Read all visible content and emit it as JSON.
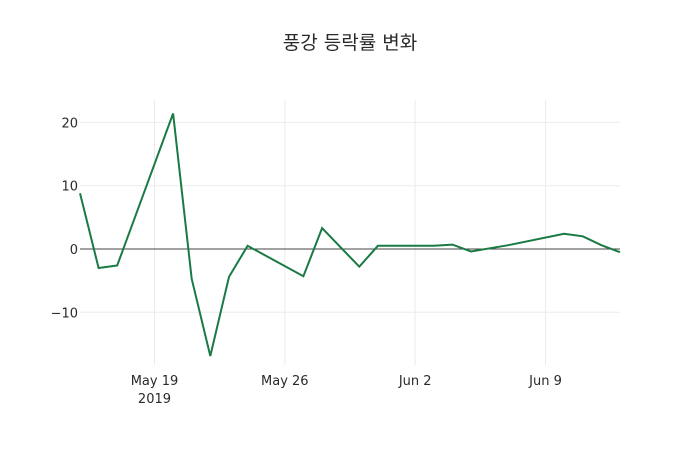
{
  "title": "풍강 등락률 변화",
  "chart_data": {
    "type": "line",
    "title": "풍강 등락률 변화",
    "xlabel": "",
    "ylabel": "",
    "x": [
      "2019-05-15",
      "2019-05-16",
      "2019-05-17",
      "2019-05-20",
      "2019-05-21",
      "2019-05-22",
      "2019-05-23",
      "2019-05-24",
      "2019-05-27",
      "2019-05-28",
      "2019-05-30",
      "2019-05-31",
      "2019-06-03",
      "2019-06-04",
      "2019-06-05",
      "2019-06-07",
      "2019-06-10",
      "2019-06-11",
      "2019-06-12",
      "2019-06-13"
    ],
    "series": [
      {
        "name": "등락률",
        "color": "#1a7a44",
        "values": [
          8.8,
          -3.0,
          -2.6,
          21.4,
          -4.7,
          -16.9,
          -4.4,
          0.5,
          -4.3,
          3.3,
          -2.8,
          0.5,
          0.5,
          0.7,
          -0.4,
          0.6,
          2.4,
          2.0,
          0.6,
          -0.5
        ]
      }
    ],
    "yticks": [
      -10,
      0,
      10,
      20
    ],
    "ytick_labels": [
      "−10",
      "0",
      "10",
      "20"
    ],
    "xticks": [
      "2019-05-19",
      "2019-05-26",
      "2019-06-02",
      "2019-06-09"
    ],
    "xtick_labels": [
      "May 19\n2019",
      "May 26",
      "Jun 2",
      "Jun 9"
    ],
    "ylim": [
      -18.5,
      23.5
    ],
    "xlim": [
      "2019-05-15",
      "2019-06-13"
    ],
    "grid": true,
    "zeroline": true,
    "legend": false
  }
}
